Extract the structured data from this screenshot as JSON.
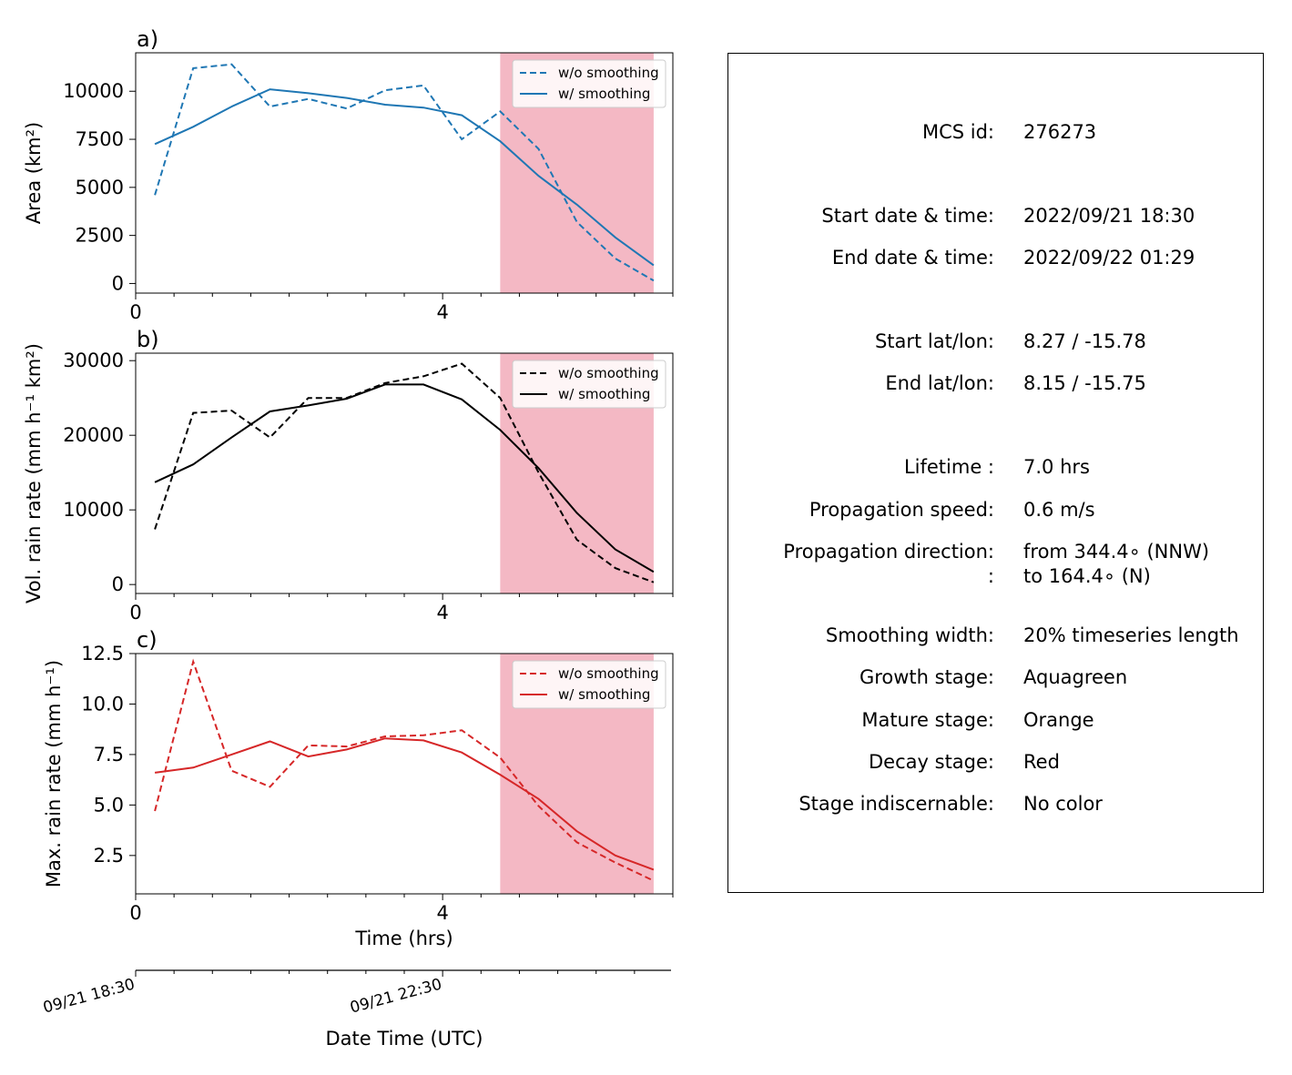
{
  "chart_data": [
    {
      "type": "line",
      "panel_label": "a)",
      "ylabel": "Area  (km²)",
      "xlim": [
        0,
        7
      ],
      "ylim": [
        -500,
        12000
      ],
      "xticks": [
        0,
        4
      ],
      "yticks": [
        0,
        2500,
        5000,
        7500,
        10000
      ],
      "ytick_labels": [
        "0",
        "2500",
        "5000",
        "7500",
        "10000"
      ],
      "shaded_region": [
        4.75,
        6.75
      ],
      "legend_position": "top-right",
      "color": "#1f77b4",
      "series": [
        {
          "name": "w/o smoothing",
          "style": "dashed",
          "x": [
            0.25,
            0.75,
            1.25,
            1.75,
            2.25,
            2.75,
            3.25,
            3.75,
            4.25,
            4.75,
            5.25,
            5.75,
            6.25,
            6.75
          ],
          "y": [
            4600,
            11200,
            11400,
            9200,
            9600,
            9100,
            10050,
            10300,
            7500,
            8950,
            7000,
            3200,
            1300,
            150
          ]
        },
        {
          "name": "w/ smoothing",
          "style": "solid",
          "x": [
            0.25,
            0.75,
            1.25,
            1.75,
            2.25,
            2.75,
            3.25,
            3.75,
            4.25,
            4.75,
            5.25,
            5.75,
            6.25,
            6.75
          ],
          "y": [
            7250,
            8150,
            9200,
            10100,
            9900,
            9650,
            9300,
            9150,
            8750,
            7400,
            5600,
            4100,
            2400,
            950
          ]
        }
      ]
    },
    {
      "type": "line",
      "panel_label": "b)",
      "ylabel": "Vol. rain rate (mm h⁻¹ km²)",
      "xlim": [
        0,
        7
      ],
      "ylim": [
        -1200,
        31000
      ],
      "xticks": [
        0,
        4
      ],
      "yticks": [
        0,
        10000,
        20000,
        30000
      ],
      "ytick_labels": [
        "0",
        "10000",
        "20000",
        "30000"
      ],
      "shaded_region": [
        4.75,
        6.75
      ],
      "legend_position": "top-right",
      "color": "#000000",
      "series": [
        {
          "name": "w/o smoothing",
          "style": "dashed",
          "x": [
            0.25,
            0.75,
            1.25,
            1.75,
            2.25,
            2.75,
            3.25,
            3.75,
            4.25,
            4.75,
            5.25,
            5.75,
            6.25,
            6.75
          ],
          "y": [
            7400,
            23000,
            23300,
            19700,
            25000,
            25000,
            27000,
            27900,
            29600,
            25000,
            15000,
            6000,
            2200,
            300
          ]
        },
        {
          "name": "w/ smoothing",
          "style": "solid",
          "x": [
            0.25,
            0.75,
            1.25,
            1.75,
            2.25,
            2.75,
            3.25,
            3.75,
            4.25,
            4.75,
            5.25,
            5.75,
            6.25,
            6.75
          ],
          "y": [
            13700,
            16100,
            19700,
            23200,
            24000,
            24900,
            26800,
            26800,
            24800,
            20700,
            15600,
            9600,
            4700,
            1700
          ]
        }
      ]
    },
    {
      "type": "line",
      "panel_label": "c)",
      "ylabel": "Max. rain rate  (mm h⁻¹)",
      "xlabel": "Time (hrs)",
      "xlim": [
        0,
        7
      ],
      "ylim": [
        0.6,
        12.5
      ],
      "xticks": [
        0,
        4
      ],
      "yticks": [
        2.5,
        5.0,
        7.5,
        10.0,
        12.5
      ],
      "ytick_labels": [
        "2.5",
        "5.0",
        "7.5",
        "10.0",
        "12.5"
      ],
      "shaded_region": [
        4.75,
        6.75
      ],
      "legend_position": "top-right",
      "color": "#d62728",
      "series": [
        {
          "name": "w/o smoothing",
          "style": "dashed",
          "x": [
            0.25,
            0.75,
            1.25,
            1.75,
            2.25,
            2.75,
            3.25,
            3.75,
            4.25,
            4.75,
            5.25,
            5.75,
            6.25,
            6.75
          ],
          "y": [
            4.7,
            12.1,
            6.7,
            5.9,
            7.95,
            7.9,
            8.4,
            8.45,
            8.7,
            7.35,
            4.95,
            3.15,
            2.15,
            1.25
          ]
        },
        {
          "name": "w/ smoothing",
          "style": "solid",
          "x": [
            0.25,
            0.75,
            1.25,
            1.75,
            2.25,
            2.75,
            3.25,
            3.75,
            4.25,
            4.75,
            5.25,
            5.75,
            6.25,
            6.75
          ],
          "y": [
            6.6,
            6.85,
            7.5,
            8.15,
            7.4,
            7.75,
            8.3,
            8.2,
            7.6,
            6.5,
            5.3,
            3.7,
            2.5,
            1.8
          ]
        }
      ]
    }
  ],
  "datetime_axis": {
    "xlabel": "Date Time (UTC)",
    "ticks": [
      {
        "x": 0,
        "label": "09/21 18:30"
      },
      {
        "x": 4,
        "label": "09/21 22:30"
      }
    ]
  },
  "info": [
    {
      "label": "MCS id:",
      "value": "276273"
    },
    {
      "label": "Start date & time:",
      "value": "2022/09/21 18:30"
    },
    {
      "label": "End date & time:",
      "value": "2022/09/22 01:29"
    },
    {
      "label": "Start lat/lon:",
      "value": "8.27 / -15.78"
    },
    {
      "label": "End lat/lon:",
      "value": "8.15 / -15.75"
    },
    {
      "label": "Lifetime :",
      "value": "7.0 hrs"
    },
    {
      "label": "Propagation speed:",
      "value": "0.6 m/s"
    },
    {
      "label": "Propagation direction:",
      "value": "from 344.4∘ (NNW)"
    },
    {
      "label": ":",
      "value": "to   164.4∘ (N)"
    },
    {
      "label": "Smoothing width:",
      "value": "20% timeseries length"
    },
    {
      "label": "Growth stage:",
      "value": "Aquagreen"
    },
    {
      "label": "Mature stage:",
      "value": "Orange"
    },
    {
      "label": "Decay stage:",
      "value": "Red"
    },
    {
      "label": "Stage indiscernable:",
      "value": "No color"
    }
  ],
  "colors": {
    "decay_shade": "#f4b8c4",
    "area": "#1f77b4",
    "volume": "#000000",
    "max_rain": "#d62728"
  }
}
